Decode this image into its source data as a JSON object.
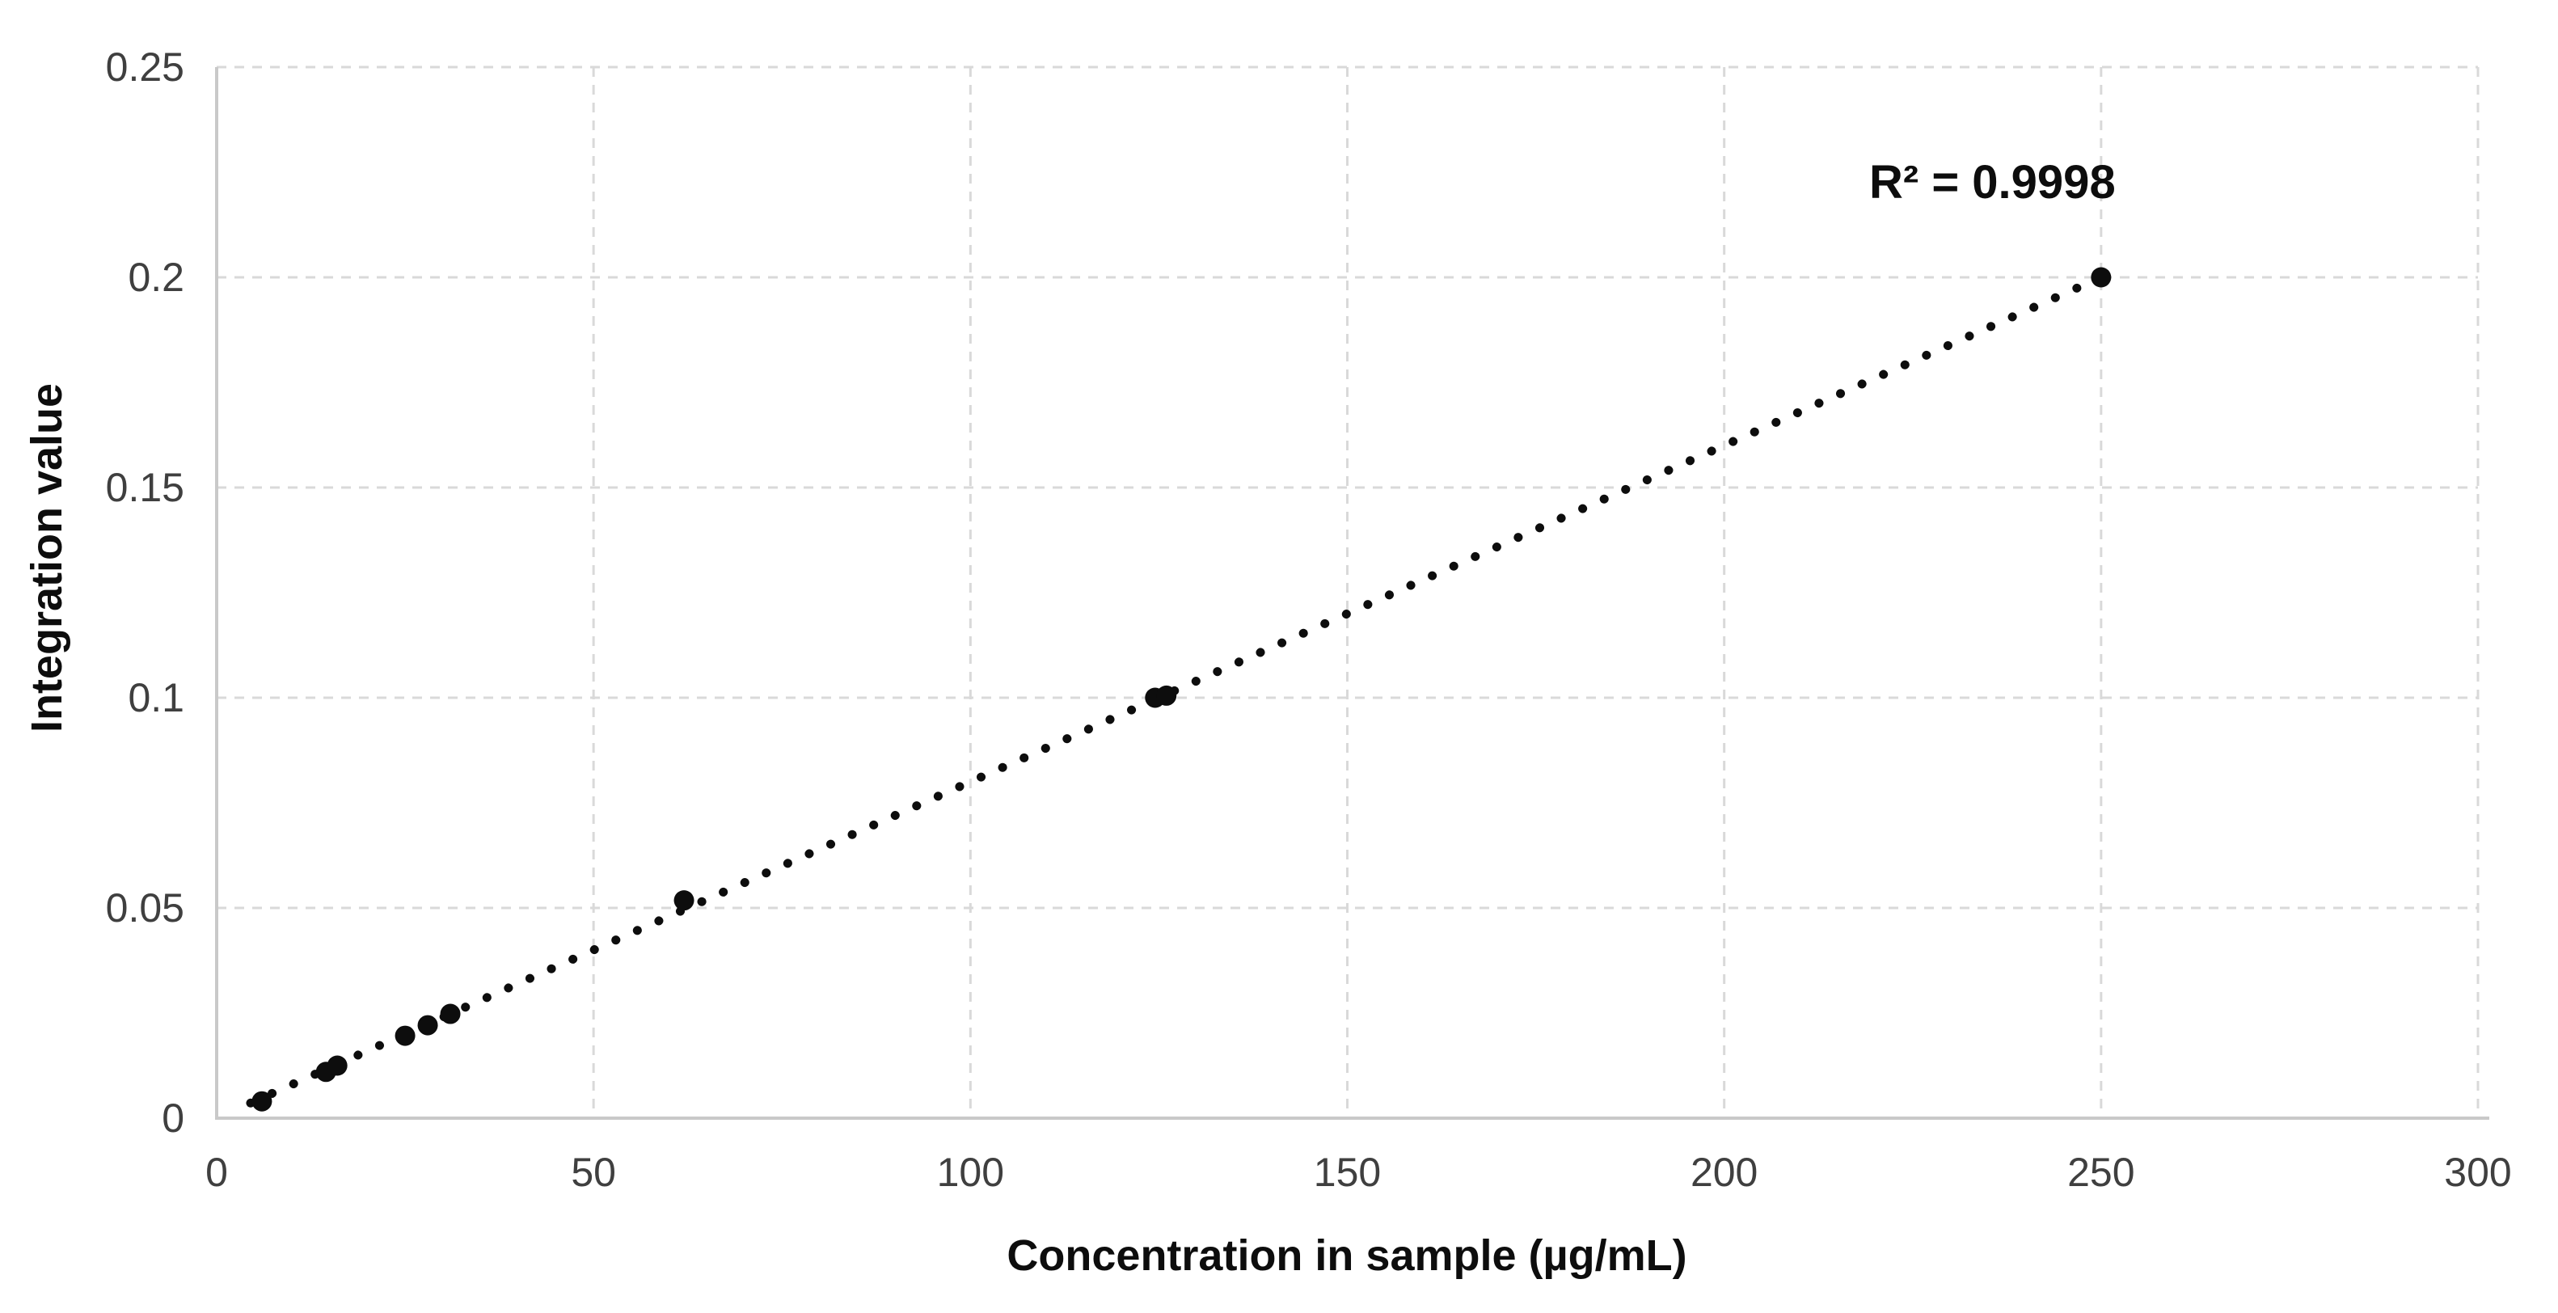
{
  "chart_data": {
    "type": "scatter",
    "title": "",
    "xlabel": "Concentration in sample (µg/mL)",
    "ylabel": "Integration value",
    "annotation": "R² = 0.9998",
    "xlim": [
      0,
      300
    ],
    "ylim": [
      0,
      0.25
    ],
    "xticks": [
      0,
      50,
      100,
      150,
      200,
      250,
      300
    ],
    "xtick_labels": [
      "0",
      "50",
      "100",
      "150",
      "200",
      "250",
      "300"
    ],
    "yticks": [
      0,
      0.05,
      0.1,
      0.15,
      0.2,
      0.25
    ],
    "ytick_labels": [
      "0",
      "0.05",
      "0.1",
      "0.15",
      "0.2",
      "0.25"
    ],
    "grid": true,
    "legend": "none",
    "series": [
      {
        "name": "calibration-points",
        "marker": "filled-circle",
        "color": "#0d0d0d",
        "points": [
          [
            6,
            0.004
          ],
          [
            14.5,
            0.011
          ],
          [
            16,
            0.0125
          ],
          [
            25,
            0.0196
          ],
          [
            28,
            0.0221
          ],
          [
            31,
            0.0248
          ],
          [
            62,
            0.0518
          ],
          [
            124.5,
            0.1
          ],
          [
            126,
            0.1005
          ],
          [
            250,
            0.2
          ]
        ]
      }
    ],
    "trendline": {
      "style": "dotted",
      "color": "#0d0d0d",
      "slope": 0.0008,
      "intercept": 0,
      "x_start": 4.5,
      "x_end": 251,
      "r_squared": 0.9998
    },
    "colors": {
      "background": "#ffffff",
      "grid": "#d9d9d9",
      "axis": "#c9c9c9",
      "tick_text": "#3f3f3f",
      "title_text": "#0d0d0d",
      "points": "#0d0d0d"
    }
  }
}
